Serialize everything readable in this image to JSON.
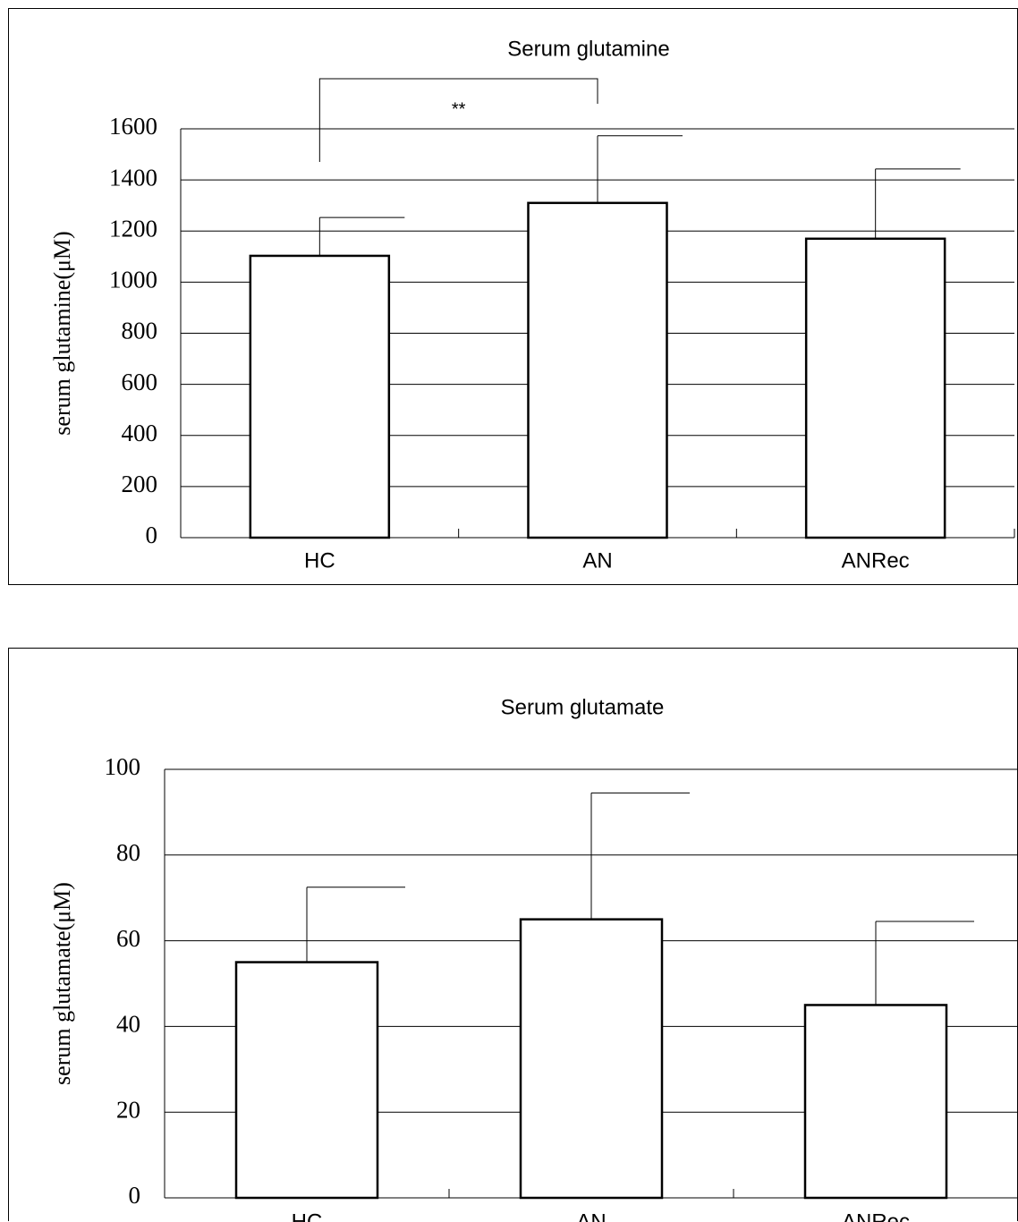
{
  "chart_data": [
    {
      "type": "bar",
      "title": "Serum glutamine",
      "xlabel": "",
      "ylabel": "serum glutamine(μM)",
      "categories": [
        "HC",
        "AN",
        "ANRec"
      ],
      "values": [
        1103,
        1310,
        1170
      ],
      "error_upper": [
        1253,
        1573,
        1443
      ],
      "ylim": [
        0,
        1600
      ],
      "yticks": [
        0,
        200,
        400,
        600,
        800,
        1000,
        1200,
        1400,
        1600
      ],
      "grid": true,
      "significance": {
        "from": "HC",
        "to": "AN",
        "label": "**"
      }
    },
    {
      "type": "bar",
      "title": "Serum glutamate",
      "xlabel": "",
      "ylabel": "serum glutamate(μM)",
      "categories": [
        "HC",
        "AN",
        "ANRec"
      ],
      "values": [
        55,
        65,
        45
      ],
      "error_upper": [
        72.5,
        94.5,
        64.5
      ],
      "ylim": [
        0,
        100
      ],
      "yticks": [
        0,
        20,
        40,
        60,
        80,
        100
      ],
      "grid": true
    }
  ]
}
